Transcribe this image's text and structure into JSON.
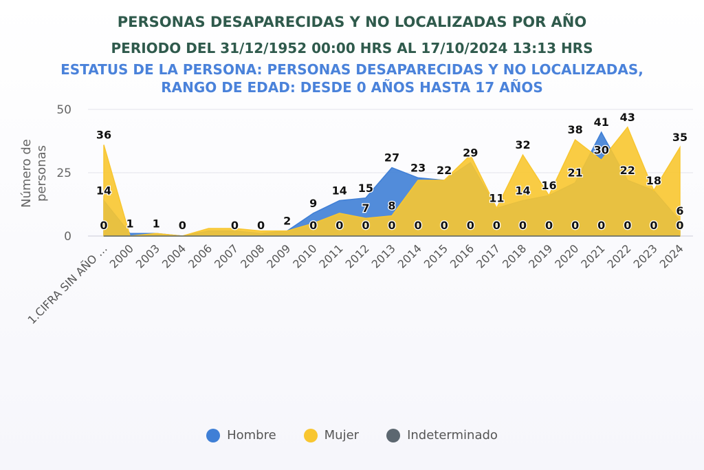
{
  "chart_data": {
    "type": "area",
    "title": "PERSONAS DESAPARECIDAS Y NO LOCALIZADAS POR AÑO",
    "subtitle": "PERIODO DEL 31/12/1952 00:00 HRS AL 17/10/2024 13:13 HRS",
    "caption_line1": "ESTATUS DE LA PERSONA: PERSONAS DESAPARECIDAS Y NO LOCALIZADAS,",
    "caption_line2": "RANGO DE EDAD: DESDE 0 AÑOS HASTA 17 AÑOS",
    "ylabel_line1": "Número de",
    "ylabel_line2": "personas",
    "ylim": [
      0,
      50
    ],
    "yticks": [
      "0",
      "25",
      "50"
    ],
    "categories": [
      "1.CIFRA SIN AÑO …",
      "2000",
      "2003",
      "2004",
      "2006",
      "2007",
      "2008",
      "2009",
      "2010",
      "2011",
      "2012",
      "2013",
      "2014",
      "2015",
      "2016",
      "2017",
      "2018",
      "2019",
      "2020",
      "2021",
      "2022",
      "2023",
      "2024"
    ],
    "series": [
      {
        "name": "Hombre",
        "color": "#3f7fd6",
        "values": [
          14,
          1,
          1,
          0,
          2,
          2,
          1,
          2,
          9,
          14,
          15,
          27,
          23,
          22,
          29,
          11,
          14,
          16,
          21,
          41,
          22,
          18,
          6
        ]
      },
      {
        "name": "Mujer",
        "color": "#f8c630",
        "values": [
          36,
          0,
          1,
          0,
          3,
          3,
          2,
          2,
          5,
          9,
          7,
          8,
          22,
          22,
          32,
          11,
          32,
          16,
          38,
          30,
          43,
          18,
          35
        ]
      },
      {
        "name": "Indeterminado",
        "color": "#5c6770",
        "values": [
          0,
          0,
          0,
          0,
          0,
          0,
          0,
          0,
          0,
          0,
          0,
          0,
          0,
          0,
          0,
          0,
          0,
          0,
          0,
          0,
          0,
          0,
          0
        ]
      }
    ],
    "data_labels": [
      {
        "category": "1.CIFRA SIN AÑO …",
        "texts": [
          "36",
          "14",
          "0"
        ]
      },
      {
        "category": "2000",
        "texts": [
          "1"
        ]
      },
      {
        "category": "2003",
        "texts": [
          "1"
        ]
      },
      {
        "category": "2004",
        "texts": [
          "0"
        ]
      },
      {
        "category": "2006",
        "texts": []
      },
      {
        "category": "2007",
        "texts": [
          "0"
        ]
      },
      {
        "category": "2008",
        "texts": [
          "0"
        ]
      },
      {
        "category": "2009",
        "texts": [
          "2"
        ]
      },
      {
        "category": "2010",
        "texts": [
          "9",
          "0"
        ]
      },
      {
        "category": "2011",
        "texts": [
          "14",
          "0"
        ]
      },
      {
        "category": "2012",
        "texts": [
          "15",
          "7",
          "0"
        ]
      },
      {
        "category": "2013",
        "texts": [
          "27",
          "8",
          "0"
        ]
      },
      {
        "category": "2014",
        "texts": [
          "23",
          "0"
        ]
      },
      {
        "category": "2015",
        "texts": [
          "22",
          "0"
        ]
      },
      {
        "category": "2016",
        "texts": [
          "29",
          "0"
        ]
      },
      {
        "category": "2017",
        "texts": [
          "11",
          "0"
        ]
      },
      {
        "category": "2018",
        "texts": [
          "32",
          "14",
          "0"
        ]
      },
      {
        "category": "2019",
        "texts": [
          "16",
          "0"
        ]
      },
      {
        "category": "2020",
        "texts": [
          "38",
          "21",
          "0"
        ]
      },
      {
        "category": "2021",
        "texts": [
          "41",
          "30",
          "0"
        ]
      },
      {
        "category": "2022",
        "texts": [
          "43",
          "22",
          "0"
        ]
      },
      {
        "category": "2023",
        "texts": [
          "18",
          "0"
        ]
      },
      {
        "category": "2024",
        "texts": [
          "35",
          "6",
          "0"
        ]
      }
    ],
    "legend_position": "bottom",
    "grid": true
  }
}
